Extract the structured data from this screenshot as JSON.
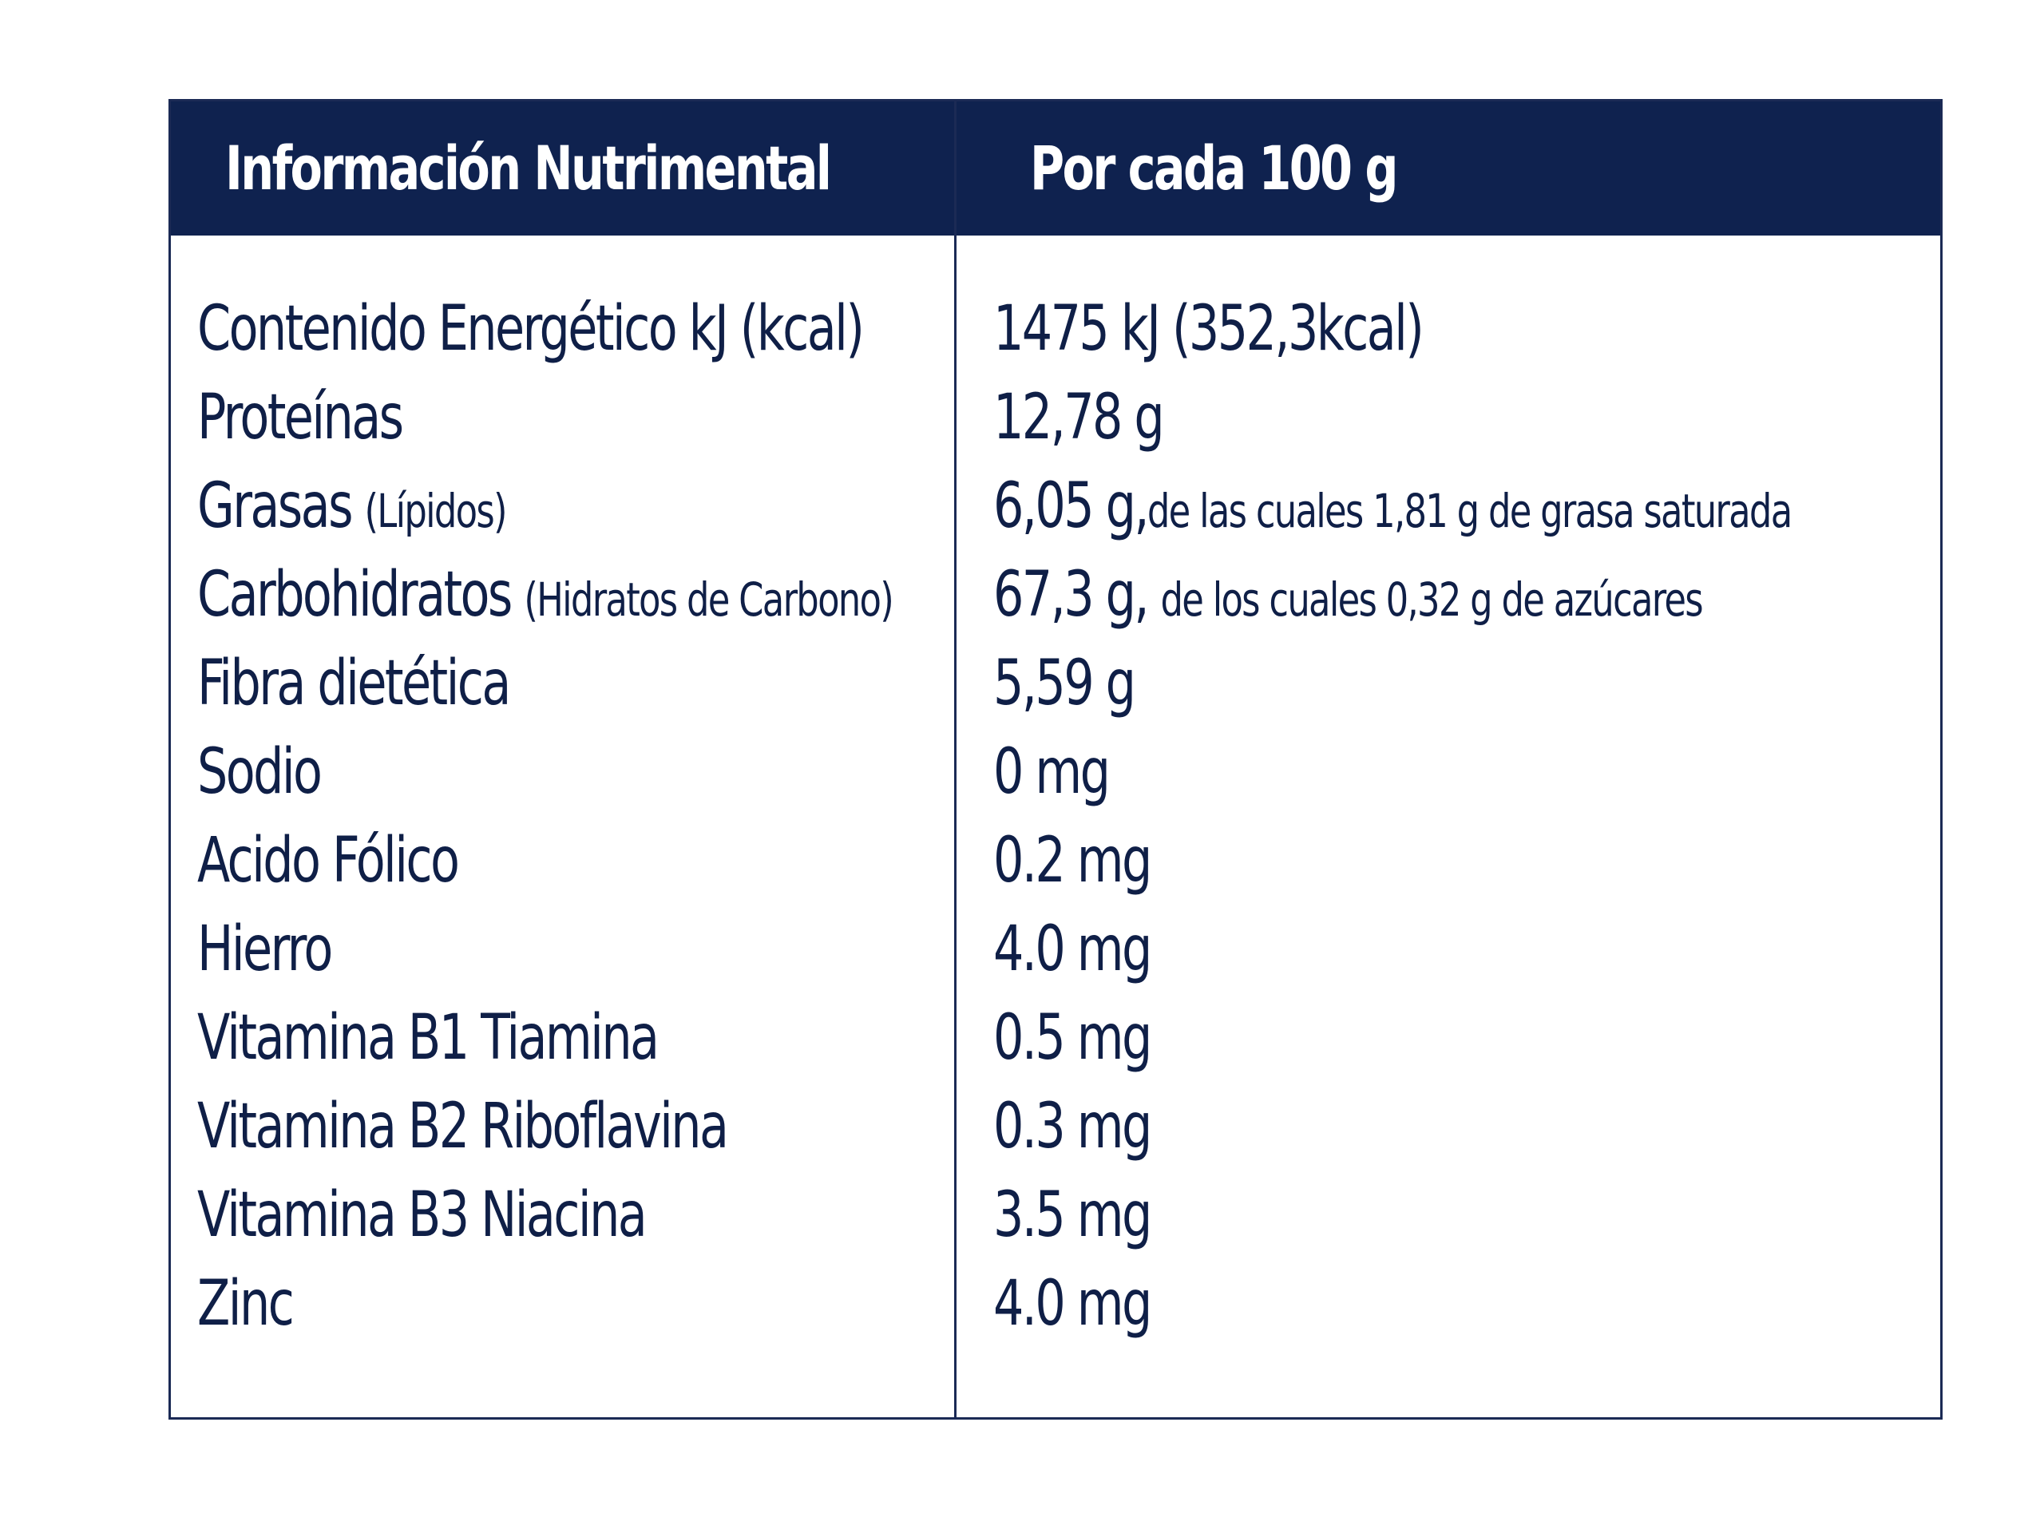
{
  "header": {
    "left": "Información Nutrimental",
    "right": "Por cada 100 g"
  },
  "rows": [
    {
      "name": "Contenido Energético kJ (kcal)",
      "name_note": "",
      "value": "1475 kJ (352,3kcal)",
      "value_note": ""
    },
    {
      "name": "Proteínas",
      "name_note": "",
      "value": "12,78 g",
      "value_note": ""
    },
    {
      "name": "Grasas",
      "name_note": "(Lípidos)",
      "value": "6,05 g,",
      "value_note": "de las cuales 1,81 g de grasa saturada"
    },
    {
      "name": "Carbohidratos",
      "name_note": "(Hidratos de Carbono)",
      "value": "67,3 g,",
      "value_note": "de los cuales 0,32 g de azúcares"
    },
    {
      "name": "Fibra dietética",
      "name_note": "",
      "value": "5,59 g",
      "value_note": ""
    },
    {
      "name": "Sodio",
      "name_note": "",
      "value": "0 mg",
      "value_note": ""
    },
    {
      "name": "Acido Fólico",
      "name_note": "",
      "value": "0.2 mg",
      "value_note": ""
    },
    {
      "name": "Hierro",
      "name_note": "",
      "value": "4.0 mg",
      "value_note": ""
    },
    {
      "name": "Vitamina B1 Tiamina",
      "name_note": "",
      "value": "0.5 mg",
      "value_note": ""
    },
    {
      "name": "Vitamina B2 Riboflavina",
      "name_note": "",
      "value": "0.3 mg",
      "value_note": ""
    },
    {
      "name": "Vitamina B3 Niacina",
      "name_note": "",
      "value": "3.5 mg",
      "value_note": ""
    },
    {
      "name": "Zinc",
      "name_note": "",
      "value": "4.0 mg",
      "value_note": ""
    }
  ]
}
